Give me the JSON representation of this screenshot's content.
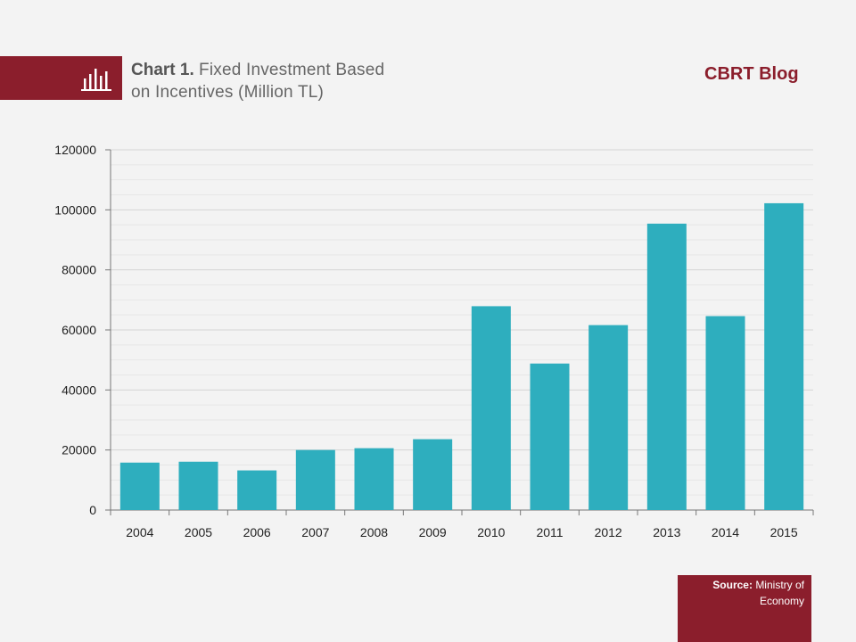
{
  "header": {
    "chart_label": "Chart 1.",
    "title_line1": "Fixed Investment Based",
    "title_line2": "on Incentives (Million TL)",
    "brand": "CBRT Blog",
    "accent_color": "#8b1e2c"
  },
  "source": {
    "label": "Source:",
    "line1": "Ministry of",
    "line2": "Economy"
  },
  "chart_data": {
    "type": "bar",
    "title": "Chart 1. Fixed Investment Based on Incentives (Million TL)",
    "categories": [
      "2004",
      "2005",
      "2006",
      "2007",
      "2008",
      "2009",
      "2010",
      "2011",
      "2012",
      "2013",
      "2014",
      "2015"
    ],
    "values": [
      15800,
      16100,
      13200,
      20000,
      20600,
      23600,
      67900,
      48800,
      61600,
      95400,
      64600,
      102200
    ],
    "ylim": [
      0,
      120000
    ],
    "yticks": [
      0,
      20000,
      40000,
      60000,
      80000,
      100000,
      120000
    ],
    "bar_color": "#2eaebe",
    "grid": true,
    "legend": "none"
  }
}
